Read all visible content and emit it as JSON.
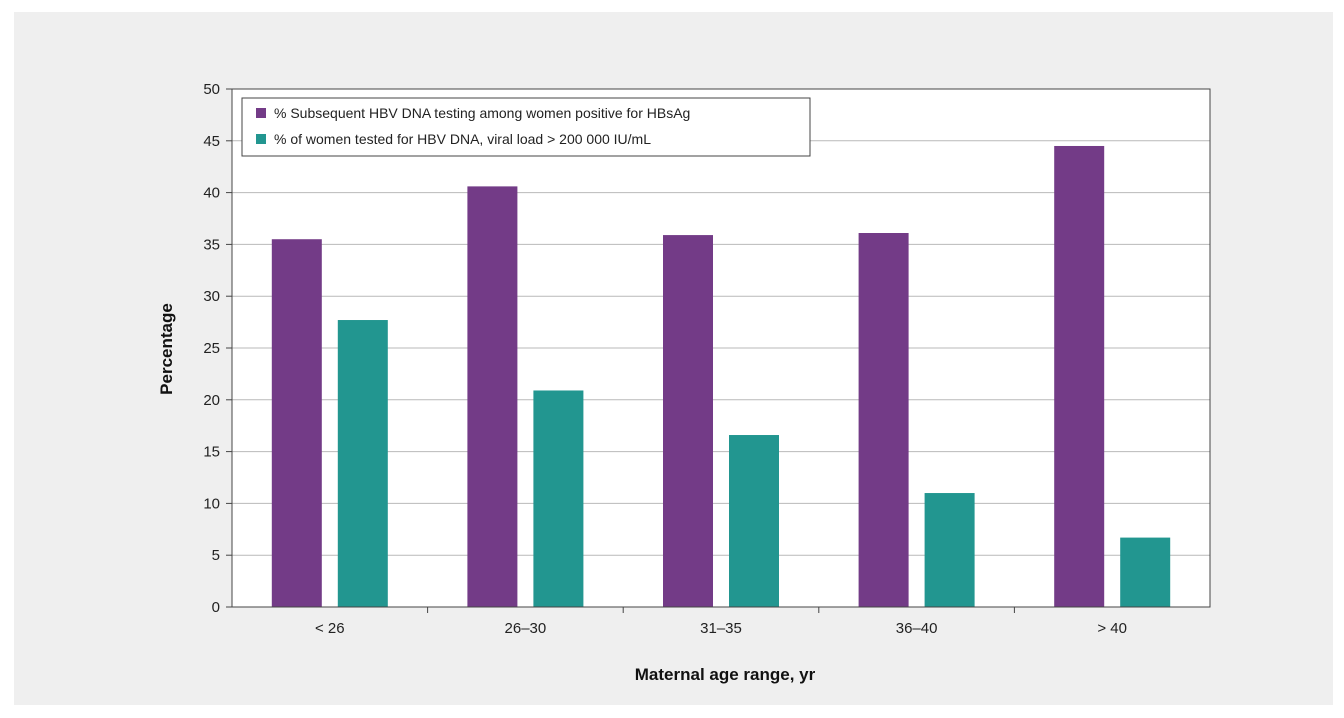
{
  "chart_data": {
    "type": "bar",
    "title": "",
    "xlabel": "Maternal age range, yr",
    "ylabel": "Percentage",
    "categories": [
      "< 26",
      "26–30",
      "31–35",
      "36–40",
      "> 40"
    ],
    "ylim": [
      0,
      50
    ],
    "yticks": [
      0,
      5,
      10,
      15,
      20,
      25,
      30,
      35,
      40,
      45,
      50
    ],
    "grid": true,
    "legend_position": "top-left",
    "series": [
      {
        "name": "% Subsequent HBV DNA testing among women positive for HBsAg",
        "color": "#733b87",
        "values": [
          35.5,
          40.6,
          35.9,
          36.1,
          44.5
        ]
      },
      {
        "name": "% of women tested for HBV DNA, viral load > 200 000 IU/mL",
        "color": "#229690",
        "values": [
          27.7,
          20.9,
          16.6,
          11.0,
          6.7
        ]
      }
    ]
  }
}
